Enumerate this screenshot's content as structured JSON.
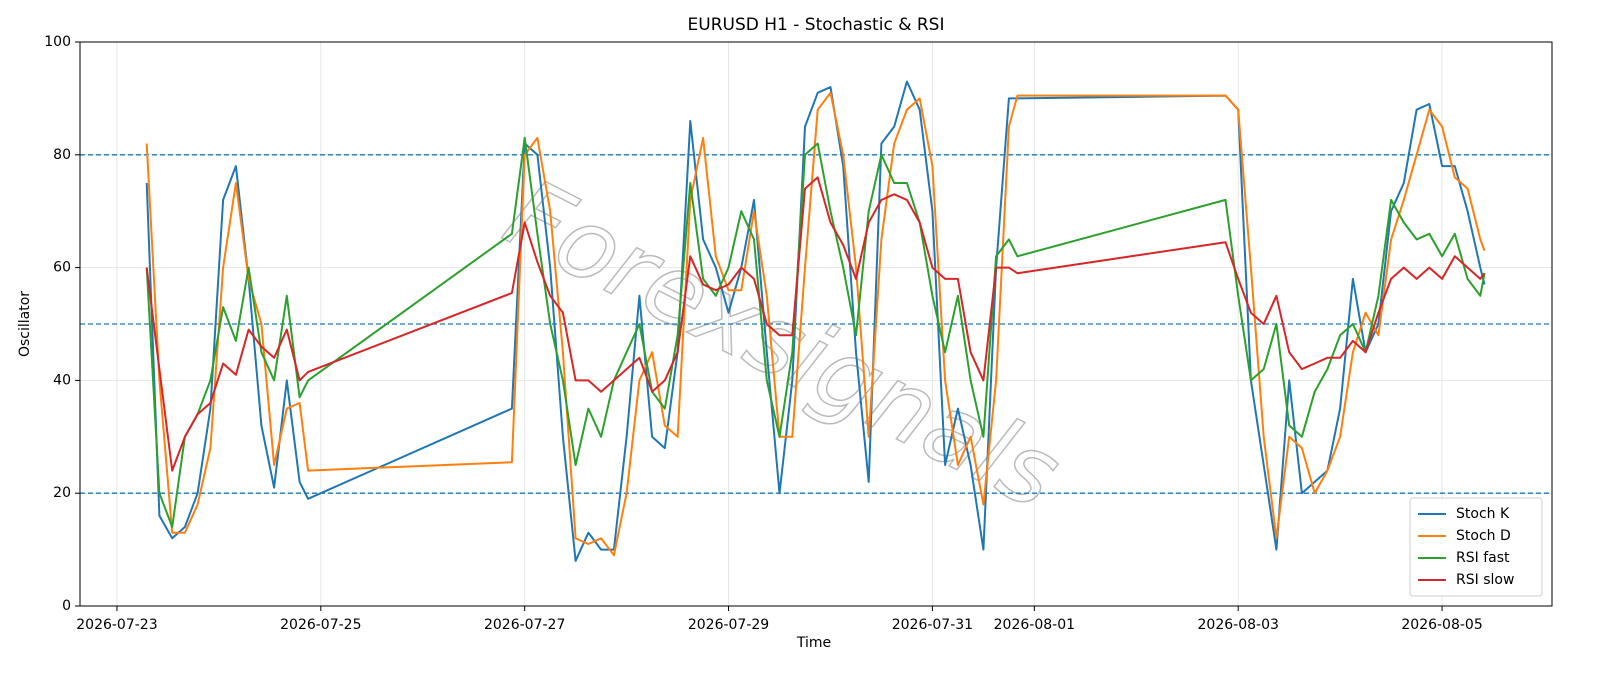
{
  "chart_data": {
    "type": "line",
    "title": "EURUSD H1 - Stochastic & RSI",
    "x_label": "Time",
    "y_label": "Oscillator",
    "watermark": "Forexsignals",
    "x": [
      "2026-07-23T07:00",
      "2026-07-23T10:00",
      "2026-07-23T13:00",
      "2026-07-23T16:00",
      "2026-07-23T19:00",
      "2026-07-23T22:00",
      "2026-07-24T01:00",
      "2026-07-24T04:00",
      "2026-07-24T07:00",
      "2026-07-24T10:00",
      "2026-07-24T13:00",
      "2026-07-24T16:00",
      "2026-07-24T19:00",
      "2026-07-24T21:00",
      "2026-07-26T21:00",
      "2026-07-27T00:00",
      "2026-07-27T03:00",
      "2026-07-27T06:00",
      "2026-07-27T09:00",
      "2026-07-27T12:00",
      "2026-07-27T15:00",
      "2026-07-27T18:00",
      "2026-07-27T21:00",
      "2026-07-28T00:00",
      "2026-07-28T03:00",
      "2026-07-28T06:00",
      "2026-07-28T09:00",
      "2026-07-28T12:00",
      "2026-07-28T15:00",
      "2026-07-28T18:00",
      "2026-07-28T21:00",
      "2026-07-29T00:00",
      "2026-07-29T03:00",
      "2026-07-29T06:00",
      "2026-07-29T09:00",
      "2026-07-29T12:00",
      "2026-07-29T15:00",
      "2026-07-29T18:00",
      "2026-07-29T21:00",
      "2026-07-30T00:00",
      "2026-07-30T03:00",
      "2026-07-30T06:00",
      "2026-07-30T09:00",
      "2026-07-30T12:00",
      "2026-07-30T15:00",
      "2026-07-30T18:00",
      "2026-07-30T21:00",
      "2026-07-31T00:00",
      "2026-07-31T03:00",
      "2026-07-31T06:00",
      "2026-07-31T09:00",
      "2026-07-31T12:00",
      "2026-07-31T15:00",
      "2026-07-31T18:00",
      "2026-07-31T20:00",
      "2026-08-02T21:00",
      "2026-08-03T00:00",
      "2026-08-03T03:00",
      "2026-08-03T06:00",
      "2026-08-03T09:00",
      "2026-08-03T12:00",
      "2026-08-03T15:00",
      "2026-08-03T18:00",
      "2026-08-03T21:00",
      "2026-08-04T00:00",
      "2026-08-04T03:00",
      "2026-08-04T06:00",
      "2026-08-04T09:00",
      "2026-08-04T12:00",
      "2026-08-04T15:00",
      "2026-08-04T18:00",
      "2026-08-04T21:00",
      "2026-08-05T00:00",
      "2026-08-05T03:00",
      "2026-08-05T06:00",
      "2026-08-05T09:00",
      "2026-08-05T10:00"
    ],
    "series": [
      {
        "name": "Stoch K",
        "color": "#1f77b4",
        "values": [
          75,
          16,
          12,
          14,
          20,
          35,
          72,
          78,
          58,
          32,
          21,
          40,
          22,
          19,
          35,
          82,
          80,
          60,
          30,
          8,
          13,
          10,
          10,
          30,
          55,
          30,
          28,
          45,
          86,
          65,
          60,
          52,
          60,
          72,
          45,
          20,
          40,
          85,
          91,
          92,
          78,
          45,
          22,
          82,
          85,
          93,
          88,
          70,
          25,
          35,
          25,
          10,
          60,
          90,
          90,
          90.5,
          88,
          40,
          25,
          10,
          40,
          20,
          22,
          24,
          35,
          58,
          45,
          50,
          70,
          75,
          88,
          89,
          78,
          78,
          70,
          60,
          57
        ]
      },
      {
        "name": "Stoch D",
        "color": "#ff7f0e",
        "values": [
          82,
          40,
          13,
          13,
          18,
          28,
          60,
          75,
          58,
          50,
          25,
          35,
          36,
          24,
          25.5,
          80,
          83,
          70,
          45,
          12,
          11,
          12,
          9,
          20,
          40,
          45,
          32,
          30,
          72,
          83,
          62,
          56,
          56,
          70,
          55,
          30,
          30,
          60,
          88,
          91,
          80,
          60,
          30,
          65,
          82,
          88,
          90,
          78,
          40,
          25,
          30,
          18,
          40,
          85,
          90.5,
          90.5,
          88,
          60,
          30,
          12,
          30,
          28,
          20,
          24,
          30,
          45,
          52,
          48,
          65,
          72,
          80,
          88,
          85,
          76,
          74,
          65,
          63
        ]
      },
      {
        "name": "RSI fast",
        "color": "#2ca02c",
        "values": [
          60,
          20,
          14,
          30,
          34,
          40,
          53,
          47,
          60,
          45,
          40,
          55,
          37,
          40,
          66,
          83,
          66,
          50,
          40,
          25,
          35,
          30,
          40,
          45,
          50,
          38,
          35,
          48,
          75,
          58,
          55,
          60,
          70,
          65,
          40,
          30,
          45,
          80,
          82,
          70,
          60,
          48,
          70,
          80,
          75,
          75,
          68,
          55,
          45,
          55,
          40,
          30,
          62,
          65,
          62,
          72,
          55,
          40,
          42,
          50,
          32,
          30,
          38,
          42,
          48,
          50,
          45,
          55,
          72,
          68,
          65,
          66,
          62,
          66,
          58,
          55,
          59
        ]
      },
      {
        "name": "RSI slow",
        "color": "#d62728",
        "values": [
          60,
          42,
          24,
          30,
          34,
          36,
          43,
          41,
          49,
          46,
          44,
          49,
          40,
          41.5,
          55.5,
          68,
          61,
          55,
          52,
          40,
          40,
          38,
          40,
          42,
          44,
          38,
          40,
          45,
          62,
          57,
          56,
          57,
          60,
          58,
          50,
          48,
          48,
          74,
          76,
          68,
          64,
          58,
          68,
          72,
          73,
          72,
          68,
          60,
          58,
          58,
          45,
          40,
          60,
          60,
          59,
          64.5,
          58,
          52,
          50,
          55,
          45,
          42,
          43,
          44,
          44,
          47,
          45,
          52,
          58,
          60,
          58,
          60,
          58,
          62,
          60,
          58,
          59
        ]
      }
    ],
    "xlim": [
      "2026-07-22T15:18",
      "2026-08-06T01:53"
    ],
    "xticks": [
      "2026-07-23",
      "2026-07-25",
      "2026-07-27",
      "2026-07-29",
      "2026-07-31",
      "2026-08-01",
      "2026-08-03",
      "2026-08-05"
    ],
    "ylim": [
      0,
      100
    ],
    "yticks": [
      0,
      20,
      40,
      60,
      80,
      100
    ],
    "hlines": [
      20,
      50,
      80
    ],
    "hline_color": "#1f77b4",
    "grid": true,
    "legend": "lower right"
  }
}
